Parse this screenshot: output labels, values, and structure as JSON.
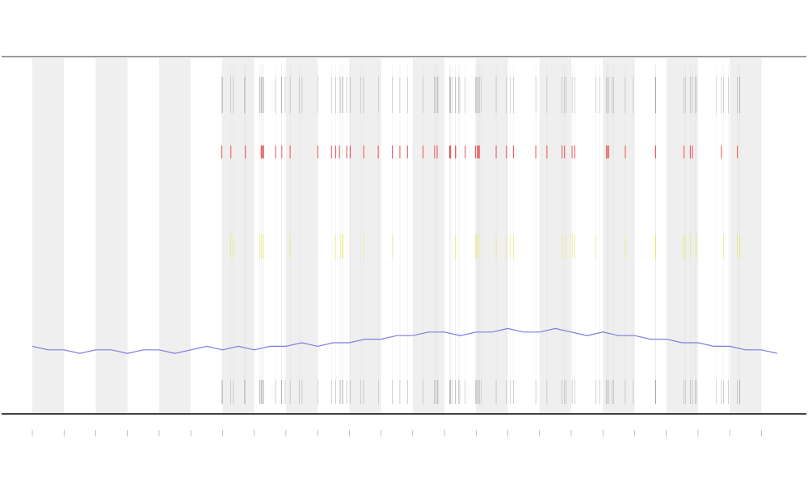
{
  "chart_data": {
    "type": "line",
    "categories": [
      null,
      null,
      null,
      null,
      null,
      null,
      null,
      null,
      null,
      null,
      null,
      null,
      null,
      null,
      null,
      null,
      null,
      null,
      null,
      null,
      null,
      null,
      null,
      null,
      null,
      null,
      null,
      null,
      null,
      null,
      null,
      null,
      null,
      null,
      null,
      null,
      null,
      null,
      null,
      null,
      null,
      null,
      null,
      null,
      null,
      null,
      null,
      null
    ],
    "series": [
      {
        "color": "#7b7be0",
        "values": [
          19,
          18,
          18,
          17,
          18,
          18,
          17,
          18,
          18,
          17,
          18,
          19,
          18,
          19,
          18,
          19,
          19,
          20,
          19,
          20,
          20,
          21,
          21,
          22,
          22,
          23,
          23,
          22,
          23,
          23,
          24,
          23,
          23,
          24,
          23,
          22,
          23,
          22,
          22,
          21,
          21,
          20,
          20,
          19,
          19,
          18,
          18,
          17
        ]
      }
    ],
    "ylim": [
      0,
      100
    ]
  }
}
